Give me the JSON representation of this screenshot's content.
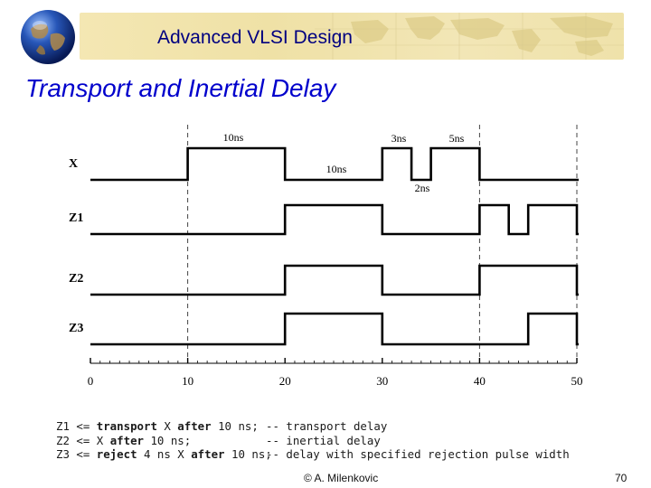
{
  "header": {
    "course_title": "Advanced VLSI Design"
  },
  "slide": {
    "title": "Transport and Inertial Delay"
  },
  "diagram": {
    "axis": {
      "ticks": [
        0,
        10,
        20,
        30,
        40,
        50
      ],
      "tick_labels": [
        "0",
        "10",
        "20",
        "30",
        "40",
        "50"
      ]
    },
    "guide_times": [
      10,
      40,
      50
    ],
    "signals": [
      {
        "label": "X",
        "transitions": [
          [
            0,
            0
          ],
          [
            10,
            1
          ],
          [
            20,
            0
          ],
          [
            30,
            1
          ],
          [
            33,
            0
          ],
          [
            35,
            1
          ],
          [
            40,
            0
          ]
        ]
      },
      {
        "label": "Z1",
        "transitions": [
          [
            0,
            0
          ],
          [
            20,
            1
          ],
          [
            30,
            0
          ],
          [
            40,
            1
          ],
          [
            43,
            0
          ],
          [
            45,
            1
          ],
          [
            50,
            0
          ]
        ]
      },
      {
        "label": "Z2",
        "transitions": [
          [
            0,
            0
          ],
          [
            20,
            1
          ],
          [
            30,
            0
          ],
          [
            40,
            1
          ],
          [
            50,
            0
          ]
        ]
      },
      {
        "label": "Z3",
        "transitions": [
          [
            0,
            0
          ],
          [
            20,
            1
          ],
          [
            30,
            0
          ],
          [
            45,
            1
          ],
          [
            50,
            0
          ]
        ]
      }
    ],
    "annotations": {
      "pulse_width_1": "10ns",
      "pulse_width_2": "10ns",
      "pulse_width_3": "3ns",
      "pulse_width_4": "2ns",
      "pulse_width_5": "5ns"
    }
  },
  "code": {
    "lines": [
      {
        "label": "Z1",
        "op": " <= ",
        "kw1": "transport",
        "mid": " X ",
        "kw2": "after",
        "tail": " 10 ns;",
        "comment": "-- transport delay"
      },
      {
        "label": "Z2",
        "op": " <= X ",
        "kw1": "after",
        "mid": "",
        "kw2": "",
        "tail": " 10 ns;",
        "comment": "-- inertial delay"
      },
      {
        "label": "Z3",
        "op": " <= ",
        "kw1": "reject",
        "mid": " 4 ns X ",
        "kw2": "after",
        "tail": " 10 ns;",
        "comment": "-- delay with specified rejection pulse width"
      }
    ]
  },
  "footer": {
    "author": "© A. Milenkovic",
    "page_number": "70"
  },
  "colors": {
    "banner_bg": "#f0e2a8",
    "banner_title": "#000080",
    "slide_title": "#0000cc",
    "waveform": "#000000",
    "guide": "#444444"
  }
}
